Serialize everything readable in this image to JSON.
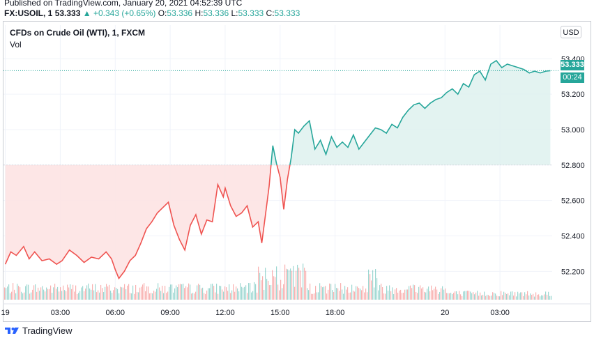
{
  "header": {
    "published": "Published on TradingView.com, January 20, 2021 04:52:39 UTC"
  },
  "ohlc": {
    "symbol": "FX:USOIL, 1",
    "last": "53.333",
    "change": "+0.343 (+0.65%)",
    "o_label": "O:",
    "o_value": "53.336",
    "h_label": "H:",
    "h_value": "53.336",
    "l_label": "L:",
    "l_value": "53.333",
    "c_label": "C:",
    "c_value": "53.333"
  },
  "legend": {
    "title": "CFDs on Crude Oil (WTI), 1, FXCM",
    "vol": "Vol"
  },
  "currency_button": "USD",
  "last_price_label": "53.333",
  "countdown_label": "00:24",
  "footer": {
    "brand": "TradingView"
  },
  "colors": {
    "up": "#26a69a",
    "down": "#ef5350",
    "up_fill": "#e0f2ef",
    "down_fill": "#fde3e3",
    "grid": "#f0f3fa",
    "price_line": "#26a69a"
  },
  "chart_data": {
    "type": "line",
    "title": "CFDs on Crude Oil (WTI), 1, FXCM",
    "baseline": 52.8,
    "y_ticks": [
      "53.400",
      "53.200",
      "53.000",
      "52.800",
      "52.600",
      "52.400",
      "52.200"
    ],
    "y_tick_values": [
      53.4,
      53.2,
      53.0,
      52.8,
      52.6,
      52.4,
      52.2
    ],
    "ylim": [
      52.04,
      53.48
    ],
    "x_ticks": [
      "19",
      "03:00",
      "06:00",
      "09:00",
      "12:00",
      "15:00",
      "18:00",
      "20",
      "03:00"
    ],
    "x_tick_hours": [
      0,
      3,
      6,
      9,
      12,
      15,
      18,
      24,
      27
    ],
    "xlim_hours": [
      -0.1,
      29.85
    ],
    "series": [
      {
        "x_hours": [
          0.0,
          0.3,
          0.6,
          1.0,
          1.3,
          1.6,
          2.0,
          2.4,
          2.8,
          3.1,
          3.5,
          3.9,
          4.3,
          4.7,
          5.1,
          5.5,
          5.8,
          6.0,
          6.2,
          6.5,
          6.8,
          7.1,
          7.4,
          7.7,
          8.0,
          8.3,
          8.6,
          8.9,
          9.2,
          9.5,
          9.8,
          10.1,
          10.4,
          10.7,
          11.0,
          11.3,
          11.6,
          11.9,
          12.0,
          12.3,
          12.6,
          12.9,
          13.2,
          13.5,
          13.8,
          14.0,
          14.2,
          14.4,
          14.6,
          14.8,
          15.0,
          15.2,
          15.4,
          15.6,
          15.8,
          16.0,
          16.3,
          16.6,
          16.9,
          17.2,
          17.5,
          17.8,
          18.1,
          18.4,
          18.7,
          19.0,
          19.3,
          19.6,
          19.9,
          20.2,
          20.5,
          20.8,
          21.1,
          21.4,
          21.7,
          22.0,
          22.3,
          22.6,
          22.9,
          23.2,
          23.5,
          23.8,
          24.1,
          24.4,
          24.7,
          25.0,
          25.3,
          25.6,
          25.9,
          26.2,
          26.5,
          26.8,
          27.1,
          27.4,
          27.7,
          28.0,
          28.3,
          28.6,
          28.9,
          29.2,
          29.5,
          29.75
        ],
        "values": [
          52.24,
          52.31,
          52.29,
          52.34,
          52.27,
          52.31,
          52.26,
          52.27,
          52.24,
          52.26,
          52.32,
          52.29,
          52.25,
          52.28,
          52.27,
          52.31,
          52.27,
          52.21,
          52.16,
          52.2,
          52.26,
          52.29,
          52.36,
          52.44,
          52.48,
          52.53,
          52.56,
          52.59,
          52.46,
          52.38,
          52.32,
          52.46,
          52.52,
          52.41,
          52.49,
          52.48,
          52.69,
          52.62,
          52.67,
          52.57,
          52.51,
          52.53,
          52.57,
          52.45,
          52.48,
          52.36,
          52.52,
          52.68,
          52.91,
          52.81,
          52.73,
          52.55,
          52.72,
          52.84,
          53.0,
          52.98,
          53.02,
          53.05,
          52.89,
          52.94,
          52.86,
          52.96,
          52.9,
          52.93,
          52.9,
          52.97,
          52.89,
          52.93,
          52.97,
          53.01,
          53.0,
          52.98,
          53.03,
          53.01,
          53.07,
          53.11,
          53.14,
          53.15,
          53.12,
          53.15,
          53.17,
          53.18,
          53.21,
          53.23,
          53.2,
          53.26,
          53.24,
          53.31,
          53.33,
          53.28,
          53.37,
          53.39,
          53.35,
          53.37,
          53.36,
          53.35,
          53.34,
          53.32,
          53.33,
          53.32,
          53.33,
          53.333
        ]
      }
    ],
    "volume": {
      "note": "Vol",
      "up_color": "#26a69a",
      "down_color": "#ef5350"
    },
    "grid": true,
    "legend": "top-left"
  }
}
